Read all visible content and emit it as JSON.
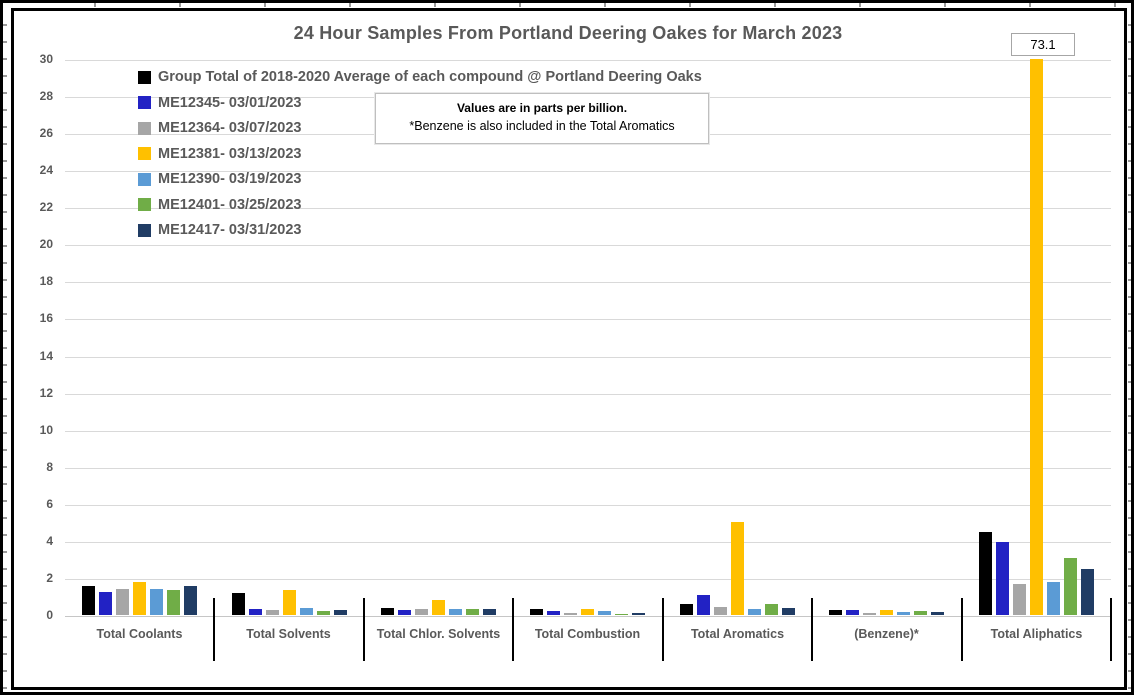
{
  "chart": {
    "title": "24 Hour Samples From Portland Deering Oakes for March 2023",
    "note_line1": "Values are in parts per billion.",
    "note_line2": "*Benzene is also included in the Total Aromatics",
    "clipped_bar_label": "73.1"
  },
  "chart_data": {
    "type": "bar",
    "title": "24 Hour Samples From Portland Deering Oakes for March 2023",
    "xlabel": "",
    "ylabel": "",
    "units": "parts per billion",
    "ylim": [
      0,
      30
    ],
    "ytick_step": 2,
    "grid": true,
    "legend_position": "top-left-inside",
    "categories": [
      "Total Coolants",
      "Total Solvents",
      "Total Chlor. Solvents",
      "Total Combustion",
      "Total Aromatics",
      "(Benzene)*",
      "Total Aliphatics"
    ],
    "series": [
      {
        "name": "Group Total of 2018-2020 Average of each compound @ Portland Deering Oaks",
        "color": "#000000",
        "values": [
          1.55,
          1.2,
          0.4,
          0.3,
          0.6,
          0.25,
          4.5
        ]
      },
      {
        "name": "ME12345- 03/01/2023",
        "color": "#2222c4",
        "values": [
          1.25,
          0.3,
          0.25,
          0.2,
          1.1,
          0.25,
          3.95
        ]
      },
      {
        "name": "ME12364- 03/07/2023",
        "color": "#a6a6a6",
        "values": [
          1.4,
          0.25,
          0.3,
          0.1,
          0.45,
          0.1,
          1.65
        ]
      },
      {
        "name": "ME12381- 03/13/2023",
        "color": "#ffc000",
        "values": [
          1.8,
          1.35,
          0.8,
          0.3,
          5.0,
          0.25,
          73.1
        ]
      },
      {
        "name": "ME12390- 03/19/2023",
        "color": "#5b9bd5",
        "values": [
          1.4,
          0.4,
          0.3,
          0.2,
          0.3,
          0.15,
          1.8
        ]
      },
      {
        "name": "ME12401- 03/25/2023",
        "color": "#70ad47",
        "values": [
          1.35,
          0.2,
          0.3,
          0.02,
          0.6,
          0.2,
          3.1
        ]
      },
      {
        "name": "ME12417- 03/31/2023",
        "color": "#203c64",
        "values": [
          1.55,
          0.25,
          0.3,
          0.1,
          0.4,
          0.15,
          2.5
        ]
      }
    ],
    "annotations": [
      {
        "text": "Values are in parts per billion.",
        "style": "bold"
      },
      {
        "text": "*Benzene is also included in the Total Aromatics",
        "style": "regular"
      },
      {
        "text": "73.1",
        "type": "data-label",
        "series": "ME12381- 03/13/2023",
        "category": "Total Aliphatics",
        "note": "bar clipped at y-axis max of 30"
      }
    ],
    "colors": {
      "title_text": "#595959",
      "axis_text": "#595959",
      "gridline": "#d9d9d9",
      "divider": "#000000",
      "chart_border": "#000000"
    }
  }
}
